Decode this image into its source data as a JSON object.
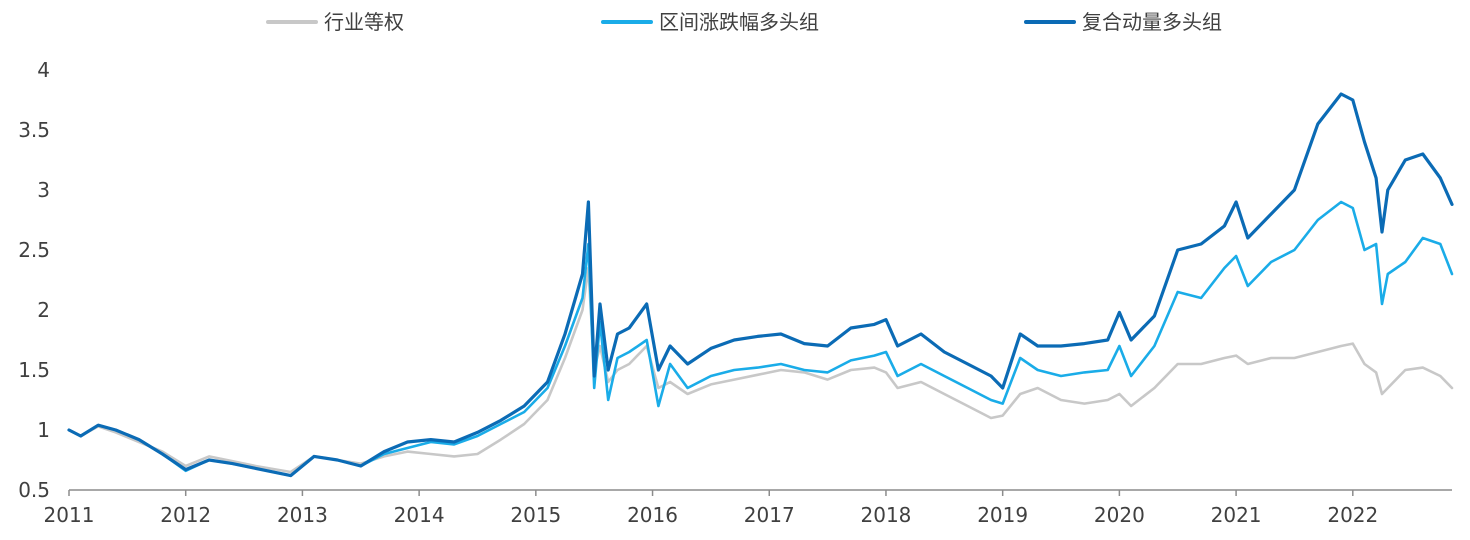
{
  "chart_data": {
    "type": "line",
    "title": "",
    "xlabel": "",
    "ylabel": "",
    "xlim": [
      2011.0,
      2022.85
    ],
    "ylim": [
      0.5,
      4.0
    ],
    "x_ticks": [
      2011,
      2012,
      2013,
      2014,
      2015,
      2016,
      2017,
      2018,
      2019,
      2020,
      2021,
      2022
    ],
    "x_tick_labels": [
      "2011",
      "2012",
      "2013",
      "2014",
      "2015",
      "2016",
      "2017",
      "2018",
      "2019",
      "2020",
      "2021",
      "2022"
    ],
    "y_ticks": [
      0.5,
      1,
      1.5,
      2,
      2.5,
      3,
      3.5,
      4
    ],
    "y_tick_labels": [
      "0.5",
      "1",
      "1.5",
      "2",
      "2.5",
      "3",
      "3.5",
      "4"
    ],
    "grid": false,
    "legend_position": "top",
    "series": [
      {
        "name": "行业等权",
        "color": "#c8c8c8",
        "x": [
          2011.0,
          2011.1,
          2011.25,
          2011.4,
          2011.6,
          2011.8,
          2012.0,
          2012.2,
          2012.4,
          2012.6,
          2012.9,
          2013.1,
          2013.3,
          2013.5,
          2013.7,
          2013.9,
          2014.1,
          2014.3,
          2014.5,
          2014.7,
          2014.9,
          2015.1,
          2015.25,
          2015.4,
          2015.45,
          2015.5,
          2015.55,
          2015.62,
          2015.7,
          2015.8,
          2015.95,
          2016.05,
          2016.15,
          2016.3,
          2016.5,
          2016.7,
          2016.9,
          2017.1,
          2017.3,
          2017.5,
          2017.7,
          2017.9,
          2018.0,
          2018.1,
          2018.3,
          2018.5,
          2018.7,
          2018.9,
          2019.0,
          2019.15,
          2019.3,
          2019.5,
          2019.7,
          2019.9,
          2020.0,
          2020.1,
          2020.3,
          2020.5,
          2020.7,
          2020.9,
          2021.0,
          2021.1,
          2021.3,
          2021.5,
          2021.7,
          2021.9,
          2022.0,
          2022.1,
          2022.2,
          2022.25,
          2022.3,
          2022.45,
          2022.6,
          2022.75,
          2022.85
        ],
        "values": [
          1.0,
          0.95,
          1.03,
          0.98,
          0.9,
          0.82,
          0.7,
          0.78,
          0.74,
          0.7,
          0.65,
          0.78,
          0.75,
          0.72,
          0.78,
          0.82,
          0.8,
          0.78,
          0.8,
          0.92,
          1.05,
          1.25,
          1.6,
          2.0,
          2.35,
          1.5,
          1.7,
          1.4,
          1.5,
          1.55,
          1.7,
          1.35,
          1.4,
          1.3,
          1.38,
          1.42,
          1.46,
          1.5,
          1.48,
          1.42,
          1.5,
          1.52,
          1.48,
          1.35,
          1.4,
          1.3,
          1.2,
          1.1,
          1.12,
          1.3,
          1.35,
          1.25,
          1.22,
          1.25,
          1.3,
          1.2,
          1.35,
          1.55,
          1.55,
          1.6,
          1.62,
          1.55,
          1.6,
          1.6,
          1.65,
          1.7,
          1.72,
          1.55,
          1.48,
          1.3,
          1.35,
          1.5,
          1.52,
          1.45,
          1.35
        ]
      },
      {
        "name": "区间涨跌幅多头组",
        "color": "#1aace8",
        "x": [
          2011.0,
          2011.1,
          2011.25,
          2011.4,
          2011.6,
          2011.8,
          2012.0,
          2012.2,
          2012.4,
          2012.6,
          2012.9,
          2013.1,
          2013.3,
          2013.5,
          2013.7,
          2013.9,
          2014.1,
          2014.3,
          2014.5,
          2014.7,
          2014.9,
          2015.1,
          2015.25,
          2015.4,
          2015.45,
          2015.5,
          2015.55,
          2015.62,
          2015.7,
          2015.8,
          2015.95,
          2016.05,
          2016.15,
          2016.3,
          2016.5,
          2016.7,
          2016.9,
          2017.1,
          2017.3,
          2017.5,
          2017.7,
          2017.9,
          2018.0,
          2018.1,
          2018.3,
          2018.5,
          2018.7,
          2018.9,
          2019.0,
          2019.15,
          2019.3,
          2019.5,
          2019.7,
          2019.9,
          2020.0,
          2020.1,
          2020.3,
          2020.5,
          2020.7,
          2020.9,
          2021.0,
          2021.1,
          2021.3,
          2021.5,
          2021.7,
          2021.9,
          2022.0,
          2022.1,
          2022.2,
          2022.25,
          2022.3,
          2022.45,
          2022.6,
          2022.75,
          2022.85
        ],
        "values": [
          1.0,
          0.95,
          1.04,
          1.0,
          0.92,
          0.8,
          0.66,
          0.75,
          0.72,
          0.68,
          0.62,
          0.78,
          0.75,
          0.7,
          0.8,
          0.85,
          0.9,
          0.88,
          0.95,
          1.05,
          1.15,
          1.35,
          1.7,
          2.1,
          2.55,
          1.35,
          1.9,
          1.25,
          1.6,
          1.65,
          1.75,
          1.2,
          1.55,
          1.35,
          1.45,
          1.5,
          1.52,
          1.55,
          1.5,
          1.48,
          1.58,
          1.62,
          1.65,
          1.45,
          1.55,
          1.45,
          1.35,
          1.25,
          1.22,
          1.6,
          1.5,
          1.45,
          1.48,
          1.5,
          1.7,
          1.45,
          1.7,
          2.15,
          2.1,
          2.35,
          2.45,
          2.2,
          2.4,
          2.5,
          2.75,
          2.9,
          2.85,
          2.5,
          2.55,
          2.05,
          2.3,
          2.4,
          2.6,
          2.55,
          2.3
        ]
      },
      {
        "name": "复合动量多头组",
        "color": "#0b6bb5",
        "x": [
          2011.0,
          2011.1,
          2011.25,
          2011.4,
          2011.6,
          2011.8,
          2012.0,
          2012.2,
          2012.4,
          2012.6,
          2012.9,
          2013.1,
          2013.3,
          2013.5,
          2013.7,
          2013.9,
          2014.1,
          2014.3,
          2014.5,
          2014.7,
          2014.9,
          2015.1,
          2015.25,
          2015.4,
          2015.45,
          2015.5,
          2015.55,
          2015.62,
          2015.7,
          2015.8,
          2015.95,
          2016.05,
          2016.15,
          2016.3,
          2016.5,
          2016.7,
          2016.9,
          2017.1,
          2017.3,
          2017.5,
          2017.7,
          2017.9,
          2018.0,
          2018.1,
          2018.3,
          2018.5,
          2018.7,
          2018.9,
          2019.0,
          2019.15,
          2019.3,
          2019.5,
          2019.7,
          2019.9,
          2020.0,
          2020.1,
          2020.3,
          2020.5,
          2020.7,
          2020.9,
          2021.0,
          2021.1,
          2021.3,
          2021.5,
          2021.7,
          2021.9,
          2022.0,
          2022.1,
          2022.2,
          2022.25,
          2022.3,
          2022.45,
          2022.6,
          2022.75,
          2022.85
        ],
        "values": [
          1.0,
          0.95,
          1.04,
          1.0,
          0.92,
          0.8,
          0.67,
          0.75,
          0.72,
          0.68,
          0.62,
          0.78,
          0.75,
          0.7,
          0.82,
          0.9,
          0.92,
          0.9,
          0.98,
          1.08,
          1.2,
          1.4,
          1.8,
          2.3,
          2.9,
          1.45,
          2.05,
          1.5,
          1.8,
          1.85,
          2.05,
          1.5,
          1.7,
          1.55,
          1.68,
          1.75,
          1.78,
          1.8,
          1.72,
          1.7,
          1.85,
          1.88,
          1.92,
          1.7,
          1.8,
          1.65,
          1.55,
          1.45,
          1.35,
          1.8,
          1.7,
          1.7,
          1.72,
          1.75,
          1.98,
          1.75,
          1.95,
          2.5,
          2.55,
          2.7,
          2.9,
          2.6,
          2.8,
          3.0,
          3.55,
          3.8,
          3.75,
          3.4,
          3.1,
          2.65,
          3.0,
          3.25,
          3.3,
          3.1,
          2.88
        ]
      }
    ]
  }
}
